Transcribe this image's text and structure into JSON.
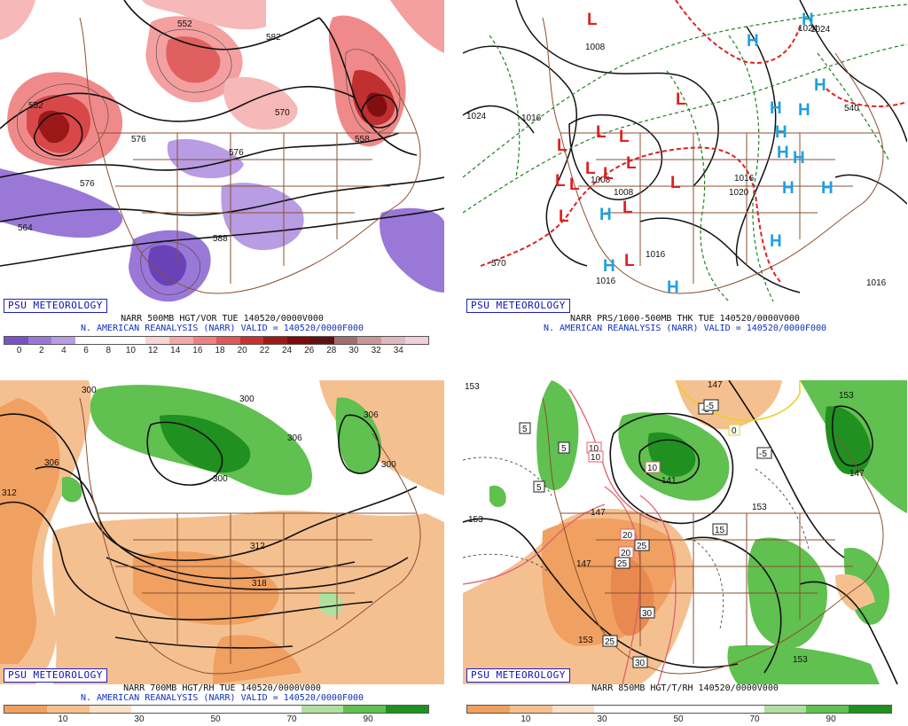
{
  "panels": [
    {
      "id": "vor500",
      "brand": "PSU METEOROLOGY",
      "caption_line1": "NARR 500MB HGT/VOR TUE 140520/0000V000",
      "caption_line2": "N. AMERICAN REANALYSIS (NARR) VALID = 140520/0000F000",
      "colorbar_colors": [
        "#7a52c8",
        "#9a78d8",
        "#b89ce4",
        "#ffffff",
        "#ffffff",
        "#ffffff",
        "#fbd4d4",
        "#f5a8a8",
        "#f08080",
        "#e05858",
        "#c83030",
        "#a01818",
        "#800808",
        "#601010",
        "#a07070",
        "#c89898",
        "#e0b8c0",
        "#f0d0d8"
      ],
      "colorbar_ticks": [
        "0",
        "2",
        "4",
        "6",
        "8",
        "10",
        "12",
        "14",
        "16",
        "18",
        "20",
        "22",
        "24",
        "26",
        "28",
        "30",
        "32",
        "34"
      ],
      "contour_labels": [
        "552",
        "576",
        "558",
        "582",
        "588",
        "576",
        "570",
        "576",
        "564",
        "552"
      ]
    },
    {
      "id": "prs",
      "brand": "PSU METEOROLOGY",
      "caption_line1": "NARR PRS/1000-500MB THK TUE 140520/0000V000",
      "caption_line2": "N. AMERICAN REANALYSIS (NARR) VALID = 140520/0000F000",
      "contour_labels": [
        "1024",
        "1008",
        "1016",
        "1008",
        "1016",
        "1024",
        "1016",
        "1016",
        "1008",
        "570",
        "540",
        "1020",
        "1024",
        "1016"
      ],
      "pressure_centers": [
        "L",
        "L",
        "L",
        "L",
        "L",
        "L",
        "L",
        "L",
        "L",
        "L",
        "L",
        "L",
        "L",
        "L",
        "H",
        "H",
        "H",
        "H",
        "H",
        "H",
        "H",
        "H",
        "H",
        "H",
        "H",
        "H",
        "H",
        "H"
      ],
      "colors": {
        "low": "#e02020",
        "high": "#20a0e0"
      }
    },
    {
      "id": "rh700",
      "brand": "PSU METEOROLOGY",
      "caption_line1": "NARR 700MB HGT/RH TUE 140520/0000V000",
      "caption_line2": "N. AMERICAN REANALYSIS (NARR) VALID = 140520/0000F000",
      "colorbar_colors": [
        "#f0a060",
        "#f5c090",
        "#fce0c8",
        "#ffffff",
        "#ffffff",
        "#ffffff",
        "#ffffff",
        "#b0e0a0",
        "#60c050",
        "#209020"
      ],
      "colorbar_ticks": [
        "10",
        "30",
        "50",
        "70",
        "90"
      ],
      "contour_labels": [
        "300",
        "300",
        "306",
        "306",
        "306",
        "300",
        "312",
        "300",
        "312",
        "318"
      ]
    },
    {
      "id": "rh850",
      "brand": "PSU METEOROLOGY",
      "caption_line1": "NARR 850MB HGT/T/RH 140520/0000V000",
      "caption_line2": "",
      "colorbar_colors": [
        "#f0a060",
        "#f5c090",
        "#fce0c8",
        "#ffffff",
        "#ffffff",
        "#ffffff",
        "#ffffff",
        "#b0e0a0",
        "#60c050",
        "#209020"
      ],
      "colorbar_ticks": [
        "10",
        "30",
        "50",
        "70",
        "90"
      ],
      "contour_labels": [
        "147",
        "153",
        "141",
        "147",
        "153",
        "153",
        "147",
        "153",
        "153",
        "147",
        "153"
      ],
      "temp_labels": [
        "-5",
        "0",
        "5",
        "5",
        "5",
        "10",
        "10",
        "10",
        "15",
        "20",
        "20",
        "25",
        "25",
        "25",
        "30",
        "30",
        "-5",
        "-5"
      ]
    }
  ]
}
